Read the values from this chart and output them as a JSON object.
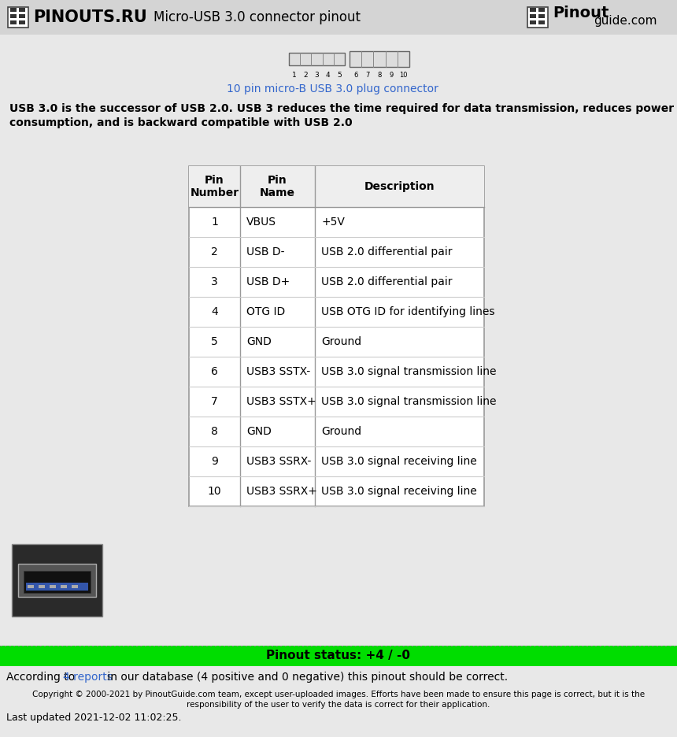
{
  "title_left_bold": "PINOUTS.RU",
  "title_center": "Micro-USB 3.0 connector pinout",
  "connector_label": "10 pin micro-B USB 3.0 plug connector",
  "description_line1": "USB 3.0 is the successor of USB 2.0. USB 3 reduces the time required for data transmission, reduces power",
  "description_line2": "consumption, and is backward compatible with USB 2.0",
  "table_headers": [
    "Pin\nNumber",
    "Pin\nName",
    "Description"
  ],
  "table_data": [
    [
      "1",
      "VBUS",
      "+5V"
    ],
    [
      "2",
      "USB D-",
      "USB 2.0 differential pair"
    ],
    [
      "3",
      "USB D+",
      "USB 2.0 differential pair"
    ],
    [
      "4",
      "OTG ID",
      "USB OTG ID for identifying lines"
    ],
    [
      "5",
      "GND",
      "Ground"
    ],
    [
      "6",
      "USB3 SSTX-",
      "USB 3.0 signal transmission line"
    ],
    [
      "7",
      "USB3 SSTX+",
      "USB 3.0 signal transmission line"
    ],
    [
      "8",
      "GND",
      "Ground"
    ],
    [
      "9",
      "USB3 SSRX-",
      "USB 3.0 signal receiving line"
    ],
    [
      "10",
      "USB3 SSRX+",
      "USB 3.0 signal receiving line"
    ]
  ],
  "status_text": "Pinout status: +4 / -0",
  "according_text1": "According to ",
  "according_link": "4 reports",
  "according_text2": " in our database (4 positive and 0 negative) this pinout should be correct.",
  "copyright_line1": "Copyright © 2000-2021 by PinoutGuide.com team, except user-uploaded images. Efforts have been made to ensure this page is correct, but it is the",
  "copyright_line2": "responsibility of the user to verify the data is correct for their application.",
  "last_updated": "Last updated 2021-12-02 11:02:25.",
  "bg_color": "#e8e8e8",
  "white": "#ffffff",
  "green_color": "#00dd00",
  "link_color": "#3366cc",
  "table_border": "#999999",
  "connector_color": "#3366cc",
  "header_bg": "#d4d4d4"
}
